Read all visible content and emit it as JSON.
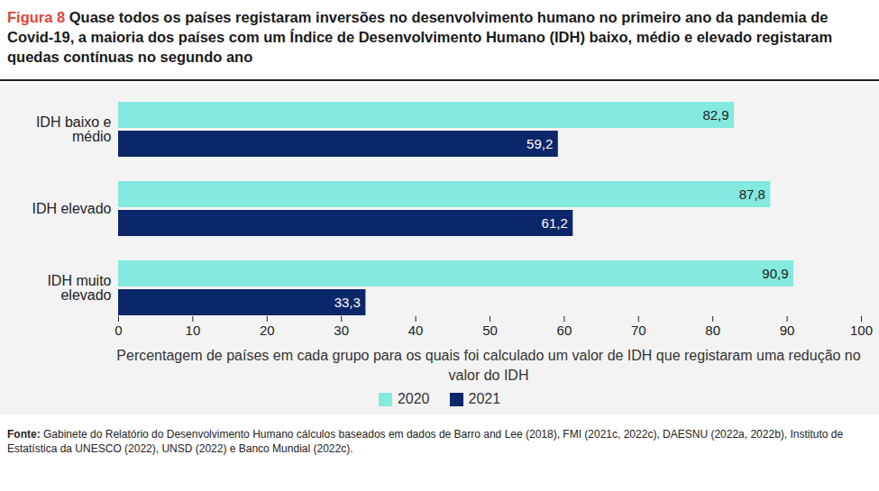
{
  "chart_data": {
    "type": "bar",
    "orientation": "horizontal",
    "title": "Figura 8",
    "subtitle": "Quase todos os países registaram inversões no desenvolvimento humano no primeiro ano da pandemia de Covid-19, a maioria dos países com um Índice de Desenvolvimento Humano (IDH) baixo, médio e elevado registaram quedas contínuas no segundo ano",
    "categories": [
      "IDH baixo e médio",
      "IDH elevado",
      "IDH muito elevado"
    ],
    "series": [
      {
        "name": "2020",
        "color": "#84e9de",
        "values": [
          82.9,
          87.8,
          90.9
        ],
        "value_labels": [
          "82,9",
          "87,8",
          "90,9"
        ]
      },
      {
        "name": "2021",
        "color": "#0b2769",
        "values": [
          59.2,
          61.2,
          33.3
        ],
        "value_labels": [
          "59,2",
          "61,2",
          "33,3"
        ]
      }
    ],
    "xlabel": "Percentagem de países em cada grupo para os quais foi calculado um valor de IDH que registaram uma redução no valor do IDH",
    "xlim": [
      0,
      100
    ],
    "xticks": [
      0,
      10,
      20,
      30,
      40,
      50,
      60,
      70,
      80,
      90,
      100
    ],
    "grid": false,
    "data_labels": true,
    "legend": "bottom",
    "source": "Fonte: Gabinete do Relatório do Desenvolvimento Humano cálculos baseados em dados de Barro and Lee (2018), FMI (2021c, 2022c), DAESNU (2022a, 2022b), Instituto de Estatística da UNESCO (2022), UNSD (2022) e Banco Mundial (2022c)."
  }
}
